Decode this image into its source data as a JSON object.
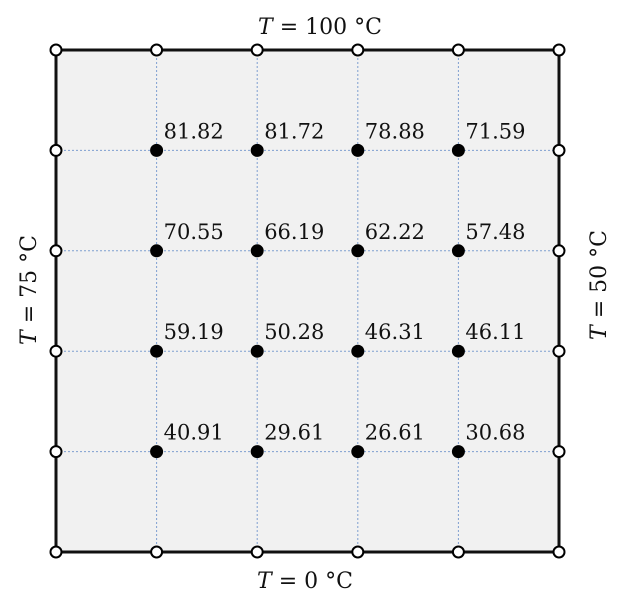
{
  "boundary": {
    "top": {
      "var": "T",
      "rest": " = 100 °C"
    },
    "bottom": {
      "var": "T",
      "rest": " = 0 °C"
    },
    "left": {
      "var": "T",
      "rest": " = 75 °C"
    },
    "right": {
      "var": "T",
      "rest": " = 50 °C"
    }
  },
  "grid": {
    "columns": 6,
    "rows": 6
  },
  "interior_values": [
    [
      "81.82",
      "81.72",
      "78.88",
      "71.59"
    ],
    [
      "70.55",
      "66.19",
      "62.22",
      "57.48"
    ],
    [
      "59.19",
      "50.28",
      "46.31",
      "46.11"
    ],
    [
      "40.91",
      "29.61",
      "26.61",
      "30.68"
    ]
  ],
  "colors": {
    "plate_fill": "#f1f1f1",
    "grid_line": "#7f9fd0",
    "border": "#111111",
    "node": "#000000"
  }
}
